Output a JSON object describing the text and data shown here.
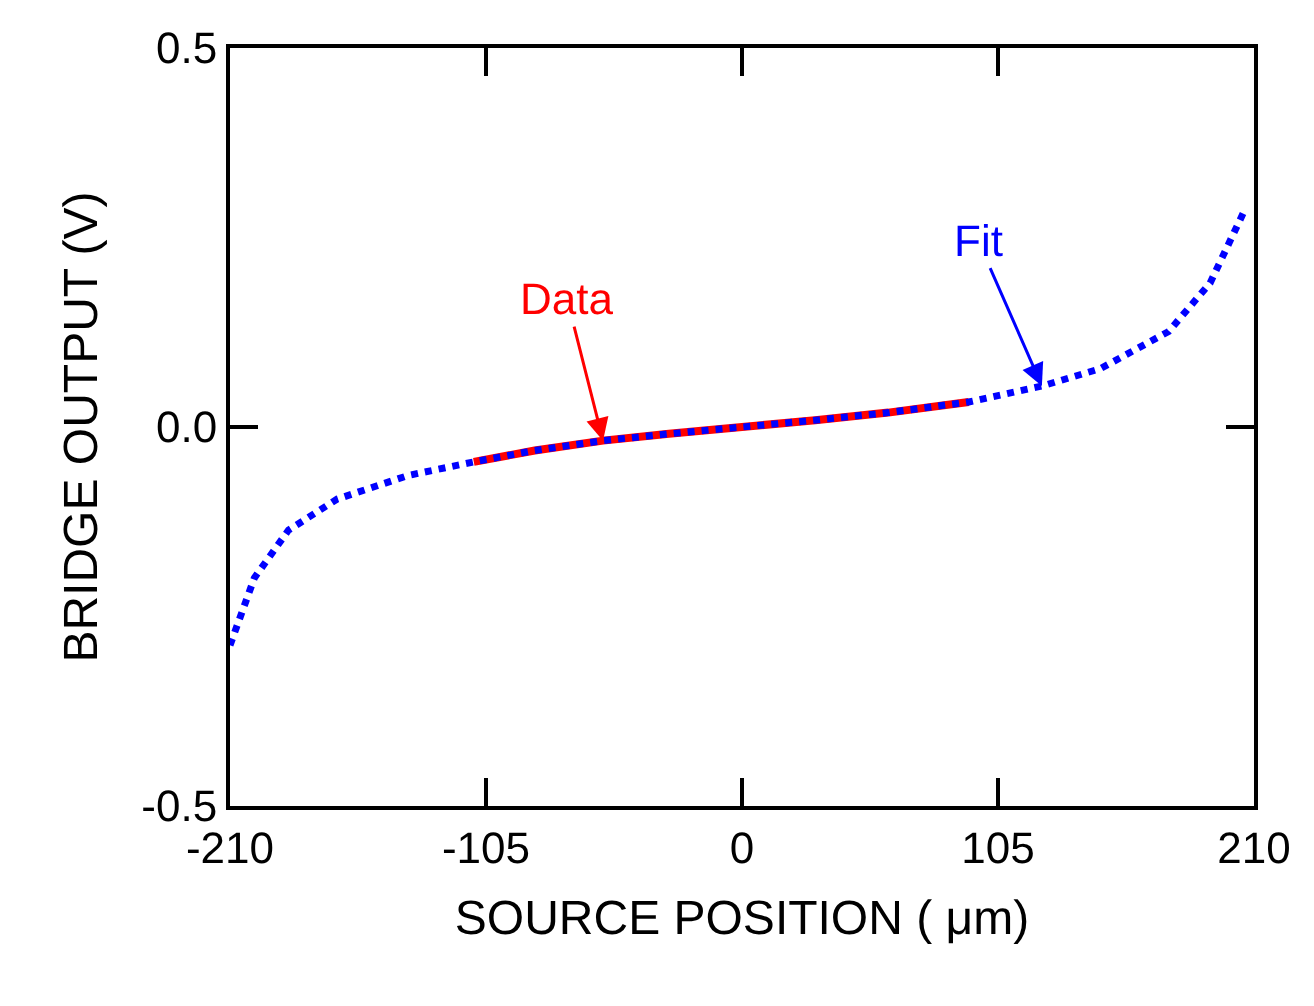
{
  "chart_data": {
    "type": "line",
    "xlabel": "SOURCE POSITION ( μm)",
    "ylabel": "BRIDGE OUTPUT (V)",
    "xlim": [
      -210,
      210
    ],
    "xticks": [
      -210,
      -105,
      0,
      105,
      210
    ],
    "ylim": [
      -0.5,
      0.5
    ],
    "yticks": [
      {
        "value": -0.5,
        "label": "-0.5"
      },
      {
        "value": 0,
        "label": "0.0"
      },
      {
        "value": 0.5,
        "label": "0.5"
      }
    ],
    "marker": "none",
    "series": [
      {
        "color": "#ff0000",
        "line_style": "solid",
        "x": [
          -110,
          -85,
          -57,
          -30,
          0,
          30,
          60,
          93
        ],
        "values": [
          -0.046,
          -0.031,
          -0.018,
          -0.009,
          0.0,
          0.009,
          0.019,
          0.033
        ]
      },
      {
        "color": "#0000ff",
        "line_style": "dotted",
        "x": [
          -210,
          -200,
          -186,
          -166,
          -137,
          -110,
          -85,
          -57,
          -30,
          0,
          30,
          60,
          93,
          123,
          147,
          175,
          192,
          206
        ],
        "values": [
          -0.288,
          -0.199,
          -0.136,
          -0.095,
          -0.064,
          -0.046,
          -0.031,
          -0.018,
          -0.009,
          0.0,
          0.009,
          0.019,
          0.033,
          0.054,
          0.077,
          0.126,
          0.19,
          0.285
        ]
      }
    ],
    "annotations": [
      {
        "text": "Data",
        "x": -57,
        "y": -0.018
      },
      {
        "text": "Fit",
        "x": 123,
        "y": 0.054
      }
    ]
  }
}
